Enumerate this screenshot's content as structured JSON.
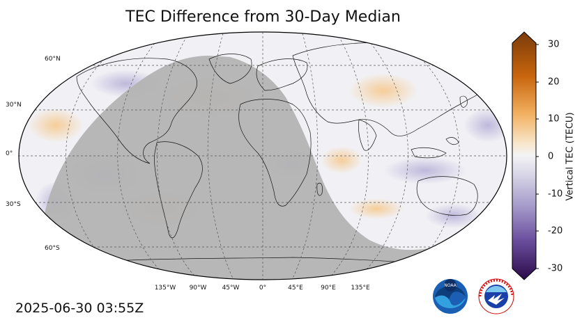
{
  "title": "TEC Difference from 30-Day Median",
  "timestamp": "2025-06-30 03:55Z",
  "latitude_labels": [
    "60°N",
    "30°N",
    "0°",
    "30°S",
    "60°S"
  ],
  "longitude_labels": [
    "135°W",
    "90°W",
    "45°W",
    "0°",
    "45°E",
    "90°E",
    "135°E"
  ],
  "colorbar": {
    "label": "Vertical TEC (TECU)",
    "ticks": [
      "30",
      "20",
      "10",
      "0",
      "-10",
      "-20",
      "-30"
    ],
    "min": -30,
    "max": 30,
    "colors": {
      "max": "#7a3a0a",
      "positive": "#e8891c",
      "neutral": "#f3f3f5",
      "negative": "#9a8fc4",
      "min": "#2b0a4a"
    }
  },
  "night_shade_color": "#b3b3b3",
  "logos": {
    "noaa_text": "NOAA",
    "nws_text": "NATIONAL WEATHER SERVICE"
  }
}
